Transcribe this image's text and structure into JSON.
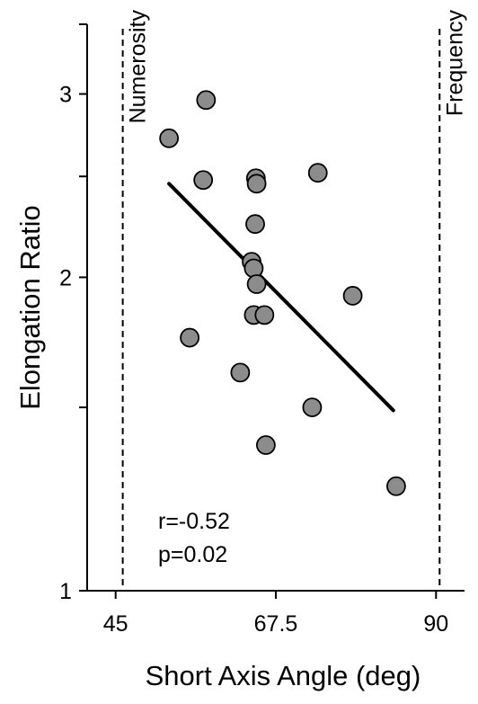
{
  "chart_data": {
    "type": "scatter",
    "xlabel": "Short Axis Angle (deg)",
    "ylabel": "Elongation Ratio",
    "xlim": [
      41,
      94
    ],
    "ylim": [
      1,
      3.5
    ],
    "yscale": "log",
    "x_ticks": [
      45,
      67.5,
      90
    ],
    "x_tick_labels": [
      "45",
      "67.5",
      "90"
    ],
    "y_ticks": [
      1,
      2,
      3
    ],
    "y_tick_labels": [
      "1",
      "2",
      "3"
    ],
    "grid": false,
    "legend": "none",
    "points": [
      {
        "x": 57.7,
        "y": 2.96
      },
      {
        "x": 52.5,
        "y": 2.72
      },
      {
        "x": 57.3,
        "y": 2.48
      },
      {
        "x": 64.7,
        "y": 2.49
      },
      {
        "x": 64.8,
        "y": 2.46
      },
      {
        "x": 73.4,
        "y": 2.52
      },
      {
        "x": 64.6,
        "y": 2.25
      },
      {
        "x": 64.1,
        "y": 2.07
      },
      {
        "x": 64.4,
        "y": 2.04
      },
      {
        "x": 64.8,
        "y": 1.97
      },
      {
        "x": 78.3,
        "y": 1.92
      },
      {
        "x": 64.4,
        "y": 1.84
      },
      {
        "x": 65.9,
        "y": 1.84
      },
      {
        "x": 55.4,
        "y": 1.75
      },
      {
        "x": 62.5,
        "y": 1.62
      },
      {
        "x": 72.6,
        "y": 1.5
      },
      {
        "x": 66.1,
        "y": 1.38
      },
      {
        "x": 84.4,
        "y": 1.26
      }
    ],
    "trendline": {
      "x": [
        52.5,
        84.0
      ],
      "y": [
        2.46,
        1.49
      ]
    },
    "reference_lines": [
      {
        "x": 46,
        "label": "Numerosity"
      },
      {
        "x": 90.5,
        "label": "Frequency"
      }
    ],
    "annotations": [
      "r=-0.52",
      "p=0.02"
    ],
    "colors": {
      "point_fill": "#8c8c8c",
      "point_stroke": "#000000",
      "line": "#000000",
      "axis": "#000000"
    }
  }
}
